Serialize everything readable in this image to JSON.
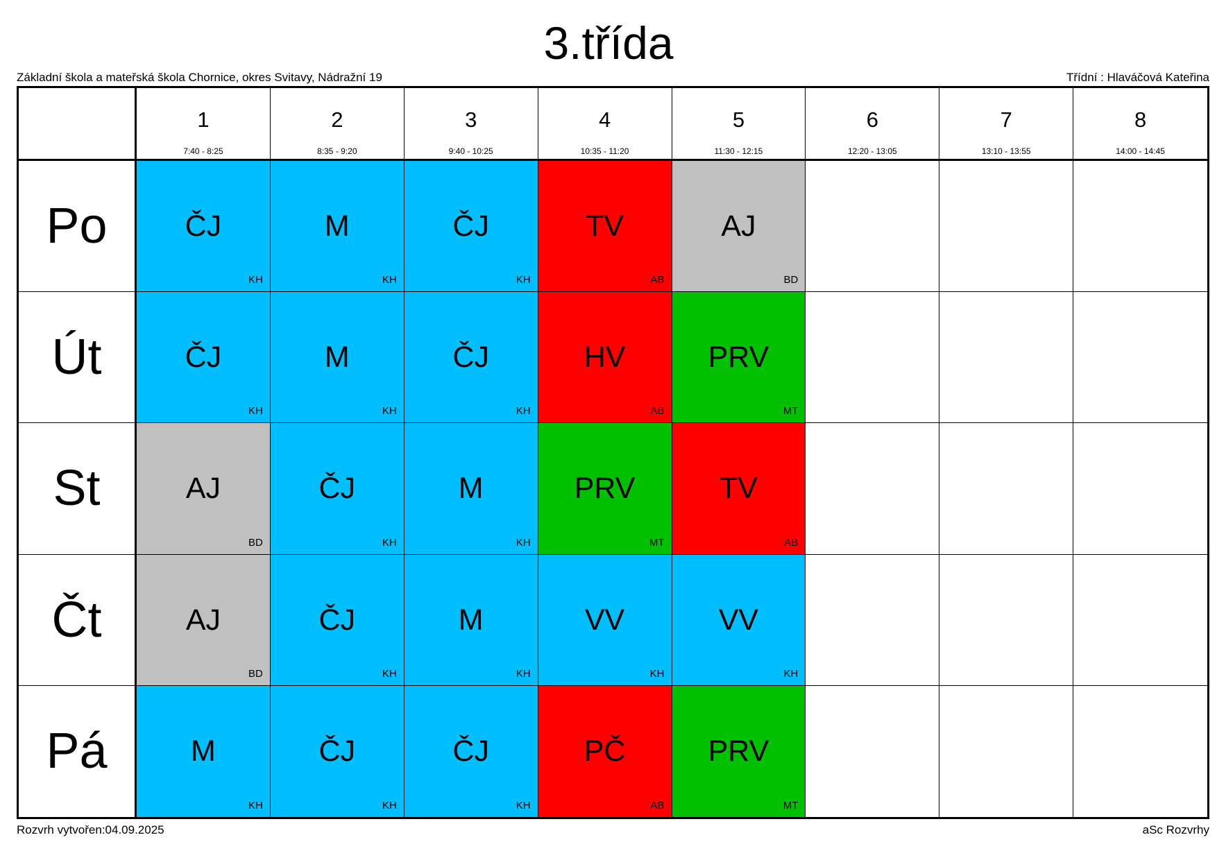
{
  "page": {
    "title": "3.třída",
    "school": "Základní škola a mateřská škola Chornice, okres Svitavy, Nádražní 19",
    "class_teacher": "Třídní : Hlaváčová Kateřina",
    "created": "Rozvrh vytvořen:04.09.2025",
    "software": "aSc Rozvrhy"
  },
  "colors": {
    "blue": "#00BFFF",
    "red": "#FF0000",
    "green": "#00C000",
    "gray": "#C0C0C0"
  },
  "periods": [
    {
      "num": "1",
      "time": "7:40 - 8:25"
    },
    {
      "num": "2",
      "time": "8:35 - 9:20"
    },
    {
      "num": "3",
      "time": "9:40 - 10:25"
    },
    {
      "num": "4",
      "time": "10:35 - 11:20"
    },
    {
      "num": "5",
      "time": "11:30 - 12:15"
    },
    {
      "num": "6",
      "time": "12:20 - 13:05"
    },
    {
      "num": "7",
      "time": "13:10 - 13:55"
    },
    {
      "num": "8",
      "time": "14:00 - 14:45"
    }
  ],
  "days": [
    {
      "name": "Po",
      "lessons": [
        {
          "subject": "ČJ",
          "teacher": "KH",
          "color": "blue"
        },
        {
          "subject": "M",
          "teacher": "KH",
          "color": "blue"
        },
        {
          "subject": "ČJ",
          "teacher": "KH",
          "color": "blue"
        },
        {
          "subject": "TV",
          "teacher": "AB",
          "color": "red"
        },
        {
          "subject": "AJ",
          "teacher": "BD",
          "color": "gray"
        },
        null,
        null,
        null
      ]
    },
    {
      "name": "Út",
      "lessons": [
        {
          "subject": "ČJ",
          "teacher": "KH",
          "color": "blue"
        },
        {
          "subject": "M",
          "teacher": "KH",
          "color": "blue"
        },
        {
          "subject": "ČJ",
          "teacher": "KH",
          "color": "blue"
        },
        {
          "subject": "HV",
          "teacher": "AB",
          "color": "red"
        },
        {
          "subject": "PRV",
          "teacher": "MT",
          "color": "green"
        },
        null,
        null,
        null
      ]
    },
    {
      "name": "St",
      "lessons": [
        {
          "subject": "AJ",
          "teacher": "BD",
          "color": "gray"
        },
        {
          "subject": "ČJ",
          "teacher": "KH",
          "color": "blue"
        },
        {
          "subject": "M",
          "teacher": "KH",
          "color": "blue"
        },
        {
          "subject": "PRV",
          "teacher": "MT",
          "color": "green"
        },
        {
          "subject": "TV",
          "teacher": "AB",
          "color": "red"
        },
        null,
        null,
        null
      ]
    },
    {
      "name": "Čt",
      "lessons": [
        {
          "subject": "AJ",
          "teacher": "BD",
          "color": "gray"
        },
        {
          "subject": "ČJ",
          "teacher": "KH",
          "color": "blue"
        },
        {
          "subject": "M",
          "teacher": "KH",
          "color": "blue"
        },
        {
          "subject": "VV",
          "teacher": "KH",
          "color": "blue"
        },
        {
          "subject": "VV",
          "teacher": "KH",
          "color": "blue"
        },
        null,
        null,
        null
      ]
    },
    {
      "name": "Pá",
      "lessons": [
        {
          "subject": "M",
          "teacher": "KH",
          "color": "blue"
        },
        {
          "subject": "ČJ",
          "teacher": "KH",
          "color": "blue"
        },
        {
          "subject": "ČJ",
          "teacher": "KH",
          "color": "blue"
        },
        {
          "subject": "PČ",
          "teacher": "AB",
          "color": "red"
        },
        {
          "subject": "PRV",
          "teacher": "MT",
          "color": "green"
        },
        null,
        null,
        null
      ]
    }
  ]
}
